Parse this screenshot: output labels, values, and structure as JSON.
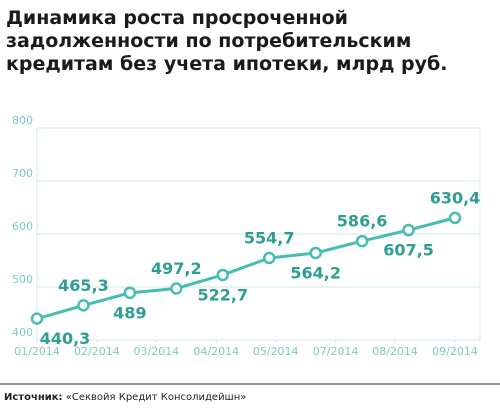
{
  "chart_data": {
    "type": "line",
    "title": [
      "Динамика роста просроченной",
      "задолженности по потребительским",
      "кредитам без учета ипотеки, млрд руб."
    ],
    "x": [
      0,
      1,
      2,
      3,
      4,
      5,
      6,
      7,
      8,
      9
    ],
    "xlim": [
      0,
      9
    ],
    "xticks": [
      {
        "value": 0,
        "label": "01/2014"
      },
      {
        "value": 1.29,
        "label": "02/2014"
      },
      {
        "value": 2.57,
        "label": "03/2014"
      },
      {
        "value": 3.86,
        "label": "04/2014"
      },
      {
        "value": 5.14,
        "label": "05/2014"
      },
      {
        "value": 6.43,
        "label": "07/2014"
      },
      {
        "value": 7.71,
        "label": "08/2014"
      },
      {
        "value": 9,
        "label": "09/2014"
      }
    ],
    "series": [
      {
        "color": "#45bdb0",
        "values": [
          440.3,
          465.3,
          489,
          497.2,
          522.7,
          554.7,
          564.2,
          586.6,
          607.5,
          630.4
        ],
        "value_labels": [
          "440,3",
          "465,3",
          "489",
          "497,2",
          "522,7",
          "554,7",
          "564,2",
          "586,6",
          "607,5",
          "630,4"
        ]
      }
    ],
    "ylim": [
      400,
      800
    ],
    "yticks": [
      400,
      500,
      600,
      700,
      800
    ],
    "grid": true,
    "source_label": "Источник:",
    "source": "«Секвойя Кредит Консолидейшн»"
  }
}
